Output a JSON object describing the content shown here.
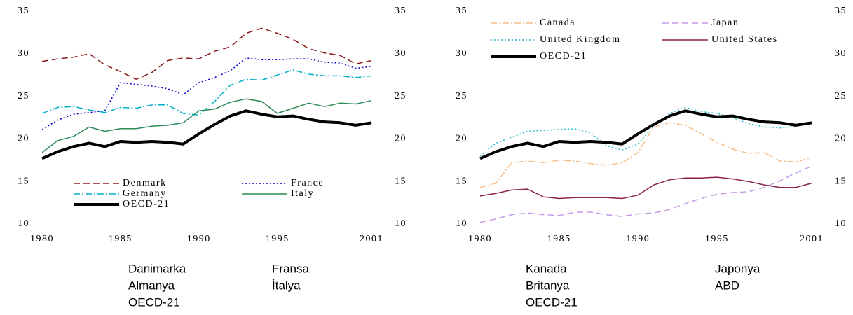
{
  "chart_data": [
    {
      "type": "line",
      "x": [
        1980,
        1981,
        1982,
        1983,
        1984,
        1985,
        1986,
        1987,
        1988,
        1989,
        1990,
        1991,
        1992,
        1993,
        1994,
        1995,
        1996,
        1997,
        1998,
        1999,
        2000,
        2001
      ],
      "xlim": [
        1980,
        2001
      ],
      "xticks": [
        1980,
        1985,
        1990,
        1995,
        2001
      ],
      "ylim": [
        10,
        35
      ],
      "yticks": [
        10,
        15,
        20,
        25,
        30,
        35
      ],
      "y2lim": [
        10,
        35
      ],
      "y2ticks": [
        10,
        15,
        20,
        25,
        30,
        35
      ],
      "grid": false,
      "legend": "lower left",
      "series": [
        {
          "name": "Denmark",
          "color": "#8b1a1a",
          "style": "dashed",
          "linewidth": 1.5,
          "values": [
            29.1,
            29.4,
            29.6,
            30.0,
            28.7,
            27.9,
            27.0,
            27.8,
            29.2,
            29.5,
            29.4,
            30.3,
            30.8,
            32.4,
            33.0,
            32.4,
            31.7,
            30.6,
            30.1,
            29.8,
            28.8,
            29.2
          ]
        },
        {
          "name": "France",
          "color": "#0000cc",
          "style": "dotted",
          "linewidth": 1.5,
          "values": [
            21.1,
            22.2,
            22.9,
            23.1,
            23.3,
            26.6,
            26.4,
            26.2,
            25.9,
            25.2,
            26.6,
            27.2,
            28.0,
            29.5,
            29.3,
            29.3,
            29.4,
            29.4,
            29.0,
            28.9,
            28.3,
            28.5
          ]
        },
        {
          "name": "Germany",
          "color": "#00b0c8",
          "style": "dashdot",
          "linewidth": 1.5,
          "values": [
            23.0,
            23.7,
            23.8,
            23.4,
            23.1,
            23.7,
            23.6,
            24.0,
            24.0,
            23.0,
            22.8,
            24.4,
            26.3,
            27.0,
            26.9,
            27.5,
            28.1,
            27.6,
            27.4,
            27.4,
            27.2,
            27.4
          ]
        },
        {
          "name": "Italy",
          "color": "#2e8b57",
          "style": "solid",
          "linewidth": 1.5,
          "values": [
            18.4,
            19.8,
            20.3,
            21.4,
            20.9,
            21.2,
            21.2,
            21.5,
            21.6,
            21.9,
            23.3,
            23.5,
            24.3,
            24.7,
            24.4,
            23.0,
            23.6,
            24.2,
            23.8,
            24.2,
            24.1,
            24.5
          ]
        },
        {
          "name": "OECD-21",
          "color": "#000000",
          "style": "solid",
          "linewidth": 4,
          "values": [
            17.7,
            18.5,
            19.1,
            19.5,
            19.1,
            19.7,
            19.6,
            19.7,
            19.6,
            19.4,
            20.6,
            21.7,
            22.7,
            23.3,
            22.9,
            22.6,
            22.7,
            22.3,
            22.0,
            21.9,
            21.6,
            21.9
          ]
        }
      ],
      "annotation_columns": [
        [
          "Danimarka",
          "Almanya",
          "OECD-21"
        ],
        [
          "Fransa",
          "İtalya"
        ]
      ]
    },
    {
      "type": "line",
      "x": [
        1980,
        1981,
        1982,
        1983,
        1984,
        1985,
        1986,
        1987,
        1988,
        1989,
        1990,
        1991,
        1992,
        1993,
        1994,
        1995,
        1996,
        1997,
        1998,
        1999,
        2000,
        2001
      ],
      "xlim": [
        1980,
        2001
      ],
      "xticks": [
        1980,
        1985,
        1990,
        1995,
        2001
      ],
      "ylim": [
        10,
        35
      ],
      "yticks": [
        10,
        15,
        20,
        25,
        30,
        35
      ],
      "y2lim": [
        10,
        35
      ],
      "y2ticks": [
        10,
        15,
        20,
        25,
        30,
        35
      ],
      "grid": false,
      "legend": "upper left",
      "series": [
        {
          "name": "Canada",
          "color": "#f5be88",
          "style": "dashdot",
          "linewidth": 1.5,
          "values": [
            14.3,
            14.8,
            17.2,
            17.4,
            17.2,
            17.5,
            17.4,
            17.1,
            16.9,
            17.2,
            18.4,
            21.4,
            21.9,
            21.6,
            20.6,
            19.6,
            18.8,
            18.3,
            18.4,
            17.4,
            17.3,
            17.8
          ]
        },
        {
          "name": "Japan",
          "color": "#c59be8",
          "style": "dashed",
          "linewidth": 1.5,
          "values": [
            10.2,
            10.6,
            11.1,
            11.3,
            11.1,
            11.0,
            11.4,
            11.4,
            11.1,
            10.9,
            11.2,
            11.3,
            11.7,
            12.4,
            13.0,
            13.5,
            13.7,
            13.8,
            14.3,
            15.1,
            16.0,
            16.8
          ]
        },
        {
          "name": "United Kingdom",
          "color": "#19b8c8",
          "style": "dotted",
          "linewidth": 1.5,
          "values": [
            18.0,
            19.5,
            20.2,
            20.9,
            21.0,
            21.1,
            21.2,
            20.7,
            19.2,
            18.7,
            19.4,
            21.5,
            23.0,
            23.7,
            23.2,
            23.0,
            22.5,
            21.8,
            21.4,
            21.3,
            21.5,
            21.9
          ]
        },
        {
          "name": "United States",
          "color": "#8b2252",
          "style": "solid",
          "linewidth": 1.5,
          "values": [
            13.3,
            13.6,
            14.0,
            14.1,
            13.2,
            13.0,
            13.1,
            13.1,
            13.1,
            13.0,
            13.4,
            14.6,
            15.2,
            15.4,
            15.4,
            15.5,
            15.3,
            15.0,
            14.6,
            14.3,
            14.3,
            14.8
          ]
        },
        {
          "name": "OECD-21",
          "color": "#000000",
          "style": "solid",
          "linewidth": 4,
          "values": [
            17.7,
            18.5,
            19.1,
            19.5,
            19.1,
            19.7,
            19.6,
            19.7,
            19.6,
            19.4,
            20.6,
            21.7,
            22.7,
            23.3,
            22.9,
            22.6,
            22.7,
            22.3,
            22.0,
            21.9,
            21.6,
            21.9
          ]
        }
      ],
      "annotation_columns": [
        [
          "Kanada",
          "Britanya",
          "OECD-21"
        ],
        [
          "Japonya",
          "ABD"
        ]
      ]
    }
  ]
}
